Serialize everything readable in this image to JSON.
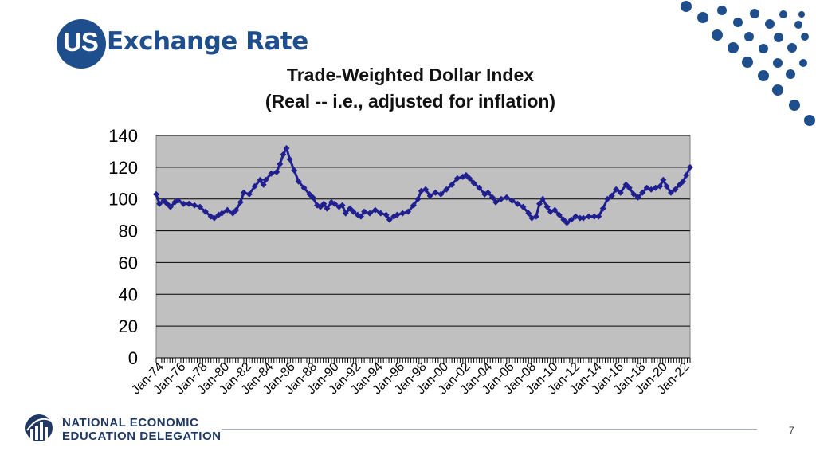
{
  "slide": {
    "title_prefix": "US",
    "title_rest": "Exchange Rate",
    "page_number": "7"
  },
  "footer": {
    "logo_line1": "NATIONAL ECONOMIC",
    "logo_line2": "EDUCATION DELEGATION"
  },
  "colors": {
    "accent": "#1f4e8c",
    "series": "#1f1f8f",
    "plot_bg": "#c0c0c0"
  },
  "chart_data": {
    "type": "line",
    "title": "Trade-Weighted Dollar Index",
    "subtitle": "(Real -- i.e., adjusted for inflation)",
    "xlabel": "",
    "ylabel": "",
    "ylim": [
      0,
      140
    ],
    "yticks": [
      0,
      20,
      40,
      60,
      80,
      100,
      120,
      140
    ],
    "grid": true,
    "legend": "none",
    "x_range": [
      1974.0,
      2022.75
    ],
    "x_tick_labels": [
      "Jan-74",
      "Jan-76",
      "Jan-78",
      "Jan-80",
      "Jan-82",
      "Jan-84",
      "Jan-86",
      "Jan-88",
      "Jan-90",
      "Jan-92",
      "Jan-94",
      "Jan-96",
      "Jan-98",
      "Jan-00",
      "Jan-02",
      "Jan-04",
      "Jan-06",
      "Jan-08",
      "Jan-10",
      "Jan-12",
      "Jan-14",
      "Jan-16",
      "Jan-18",
      "Jan-20",
      "Jan-22"
    ],
    "series": [
      {
        "name": "",
        "points": [
          [
            1974.0,
            103
          ],
          [
            1974.3,
            97
          ],
          [
            1974.7,
            99
          ],
          [
            1975.0,
            97
          ],
          [
            1975.3,
            95
          ],
          [
            1975.7,
            98
          ],
          [
            1976.0,
            99
          ],
          [
            1976.5,
            97
          ],
          [
            1977.0,
            97
          ],
          [
            1977.5,
            96
          ],
          [
            1978.0,
            95
          ],
          [
            1978.5,
            92
          ],
          [
            1979.0,
            89
          ],
          [
            1979.3,
            88
          ],
          [
            1979.7,
            90
          ],
          [
            1980.0,
            91
          ],
          [
            1980.5,
            93
          ],
          [
            1981.0,
            91
          ],
          [
            1981.3,
            93
          ],
          [
            1981.7,
            98
          ],
          [
            1982.0,
            104
          ],
          [
            1982.5,
            103
          ],
          [
            1983.0,
            108
          ],
          [
            1983.5,
            112
          ],
          [
            1983.8,
            109
          ],
          [
            1984.0,
            112
          ],
          [
            1984.5,
            116
          ],
          [
            1985.0,
            117
          ],
          [
            1985.3,
            122
          ],
          [
            1985.6,
            128
          ],
          [
            1985.9,
            132
          ],
          [
            1986.2,
            125
          ],
          [
            1986.6,
            118
          ],
          [
            1987.0,
            111
          ],
          [
            1987.5,
            107
          ],
          [
            1988.0,
            103
          ],
          [
            1988.3,
            101
          ],
          [
            1988.7,
            96
          ],
          [
            1989.0,
            95
          ],
          [
            1989.3,
            97
          ],
          [
            1989.6,
            94
          ],
          [
            1990.0,
            98
          ],
          [
            1990.3,
            97
          ],
          [
            1990.7,
            95
          ],
          [
            1991.0,
            96
          ],
          [
            1991.3,
            91
          ],
          [
            1991.7,
            94
          ],
          [
            1992.0,
            92
          ],
          [
            1992.4,
            90
          ],
          [
            1992.7,
            89
          ],
          [
            1993.0,
            92
          ],
          [
            1993.5,
            91
          ],
          [
            1994.0,
            93
          ],
          [
            1994.5,
            91
          ],
          [
            1995.0,
            90
          ],
          [
            1995.3,
            87
          ],
          [
            1995.7,
            89
          ],
          [
            1996.0,
            90
          ],
          [
            1996.5,
            91
          ],
          [
            1997.0,
            92
          ],
          [
            1997.5,
            96
          ],
          [
            1997.9,
            100
          ],
          [
            1998.2,
            105
          ],
          [
            1998.6,
            106
          ],
          [
            1999.0,
            102
          ],
          [
            1999.5,
            104
          ],
          [
            2000.0,
            103
          ],
          [
            2000.5,
            106
          ],
          [
            2001.0,
            109
          ],
          [
            2001.5,
            113
          ],
          [
            2002.0,
            114
          ],
          [
            2002.3,
            115
          ],
          [
            2002.6,
            113
          ],
          [
            2003.0,
            110
          ],
          [
            2003.5,
            107
          ],
          [
            2004.0,
            103
          ],
          [
            2004.3,
            104
          ],
          [
            2004.7,
            101
          ],
          [
            2005.0,
            98
          ],
          [
            2005.5,
            100
          ],
          [
            2006.0,
            101
          ],
          [
            2006.5,
            99
          ],
          [
            2007.0,
            97
          ],
          [
            2007.5,
            95
          ],
          [
            2008.0,
            91
          ],
          [
            2008.3,
            88
          ],
          [
            2008.7,
            89
          ],
          [
            2009.0,
            97
          ],
          [
            2009.3,
            100
          ],
          [
            2009.7,
            95
          ],
          [
            2010.0,
            92
          ],
          [
            2010.4,
            93
          ],
          [
            2010.8,
            90
          ],
          [
            2011.2,
            87
          ],
          [
            2011.5,
            85
          ],
          [
            2011.9,
            87
          ],
          [
            2012.3,
            89
          ],
          [
            2012.7,
            88
          ],
          [
            2013.0,
            88
          ],
          [
            2013.5,
            89
          ],
          [
            2014.0,
            89
          ],
          [
            2014.4,
            89
          ],
          [
            2014.8,
            94
          ],
          [
            2015.2,
            100
          ],
          [
            2015.6,
            102
          ],
          [
            2016.0,
            106
          ],
          [
            2016.4,
            104
          ],
          [
            2016.9,
            109
          ],
          [
            2017.2,
            107
          ],
          [
            2017.6,
            103
          ],
          [
            2018.0,
            101
          ],
          [
            2018.4,
            104
          ],
          [
            2018.8,
            107
          ],
          [
            2019.2,
            106
          ],
          [
            2019.6,
            107
          ],
          [
            2020.0,
            108
          ],
          [
            2020.3,
            112
          ],
          [
            2020.6,
            108
          ],
          [
            2021.0,
            104
          ],
          [
            2021.4,
            106
          ],
          [
            2021.8,
            109
          ],
          [
            2022.1,
            111
          ],
          [
            2022.4,
            115
          ],
          [
            2022.75,
            120
          ]
        ]
      }
    ]
  }
}
